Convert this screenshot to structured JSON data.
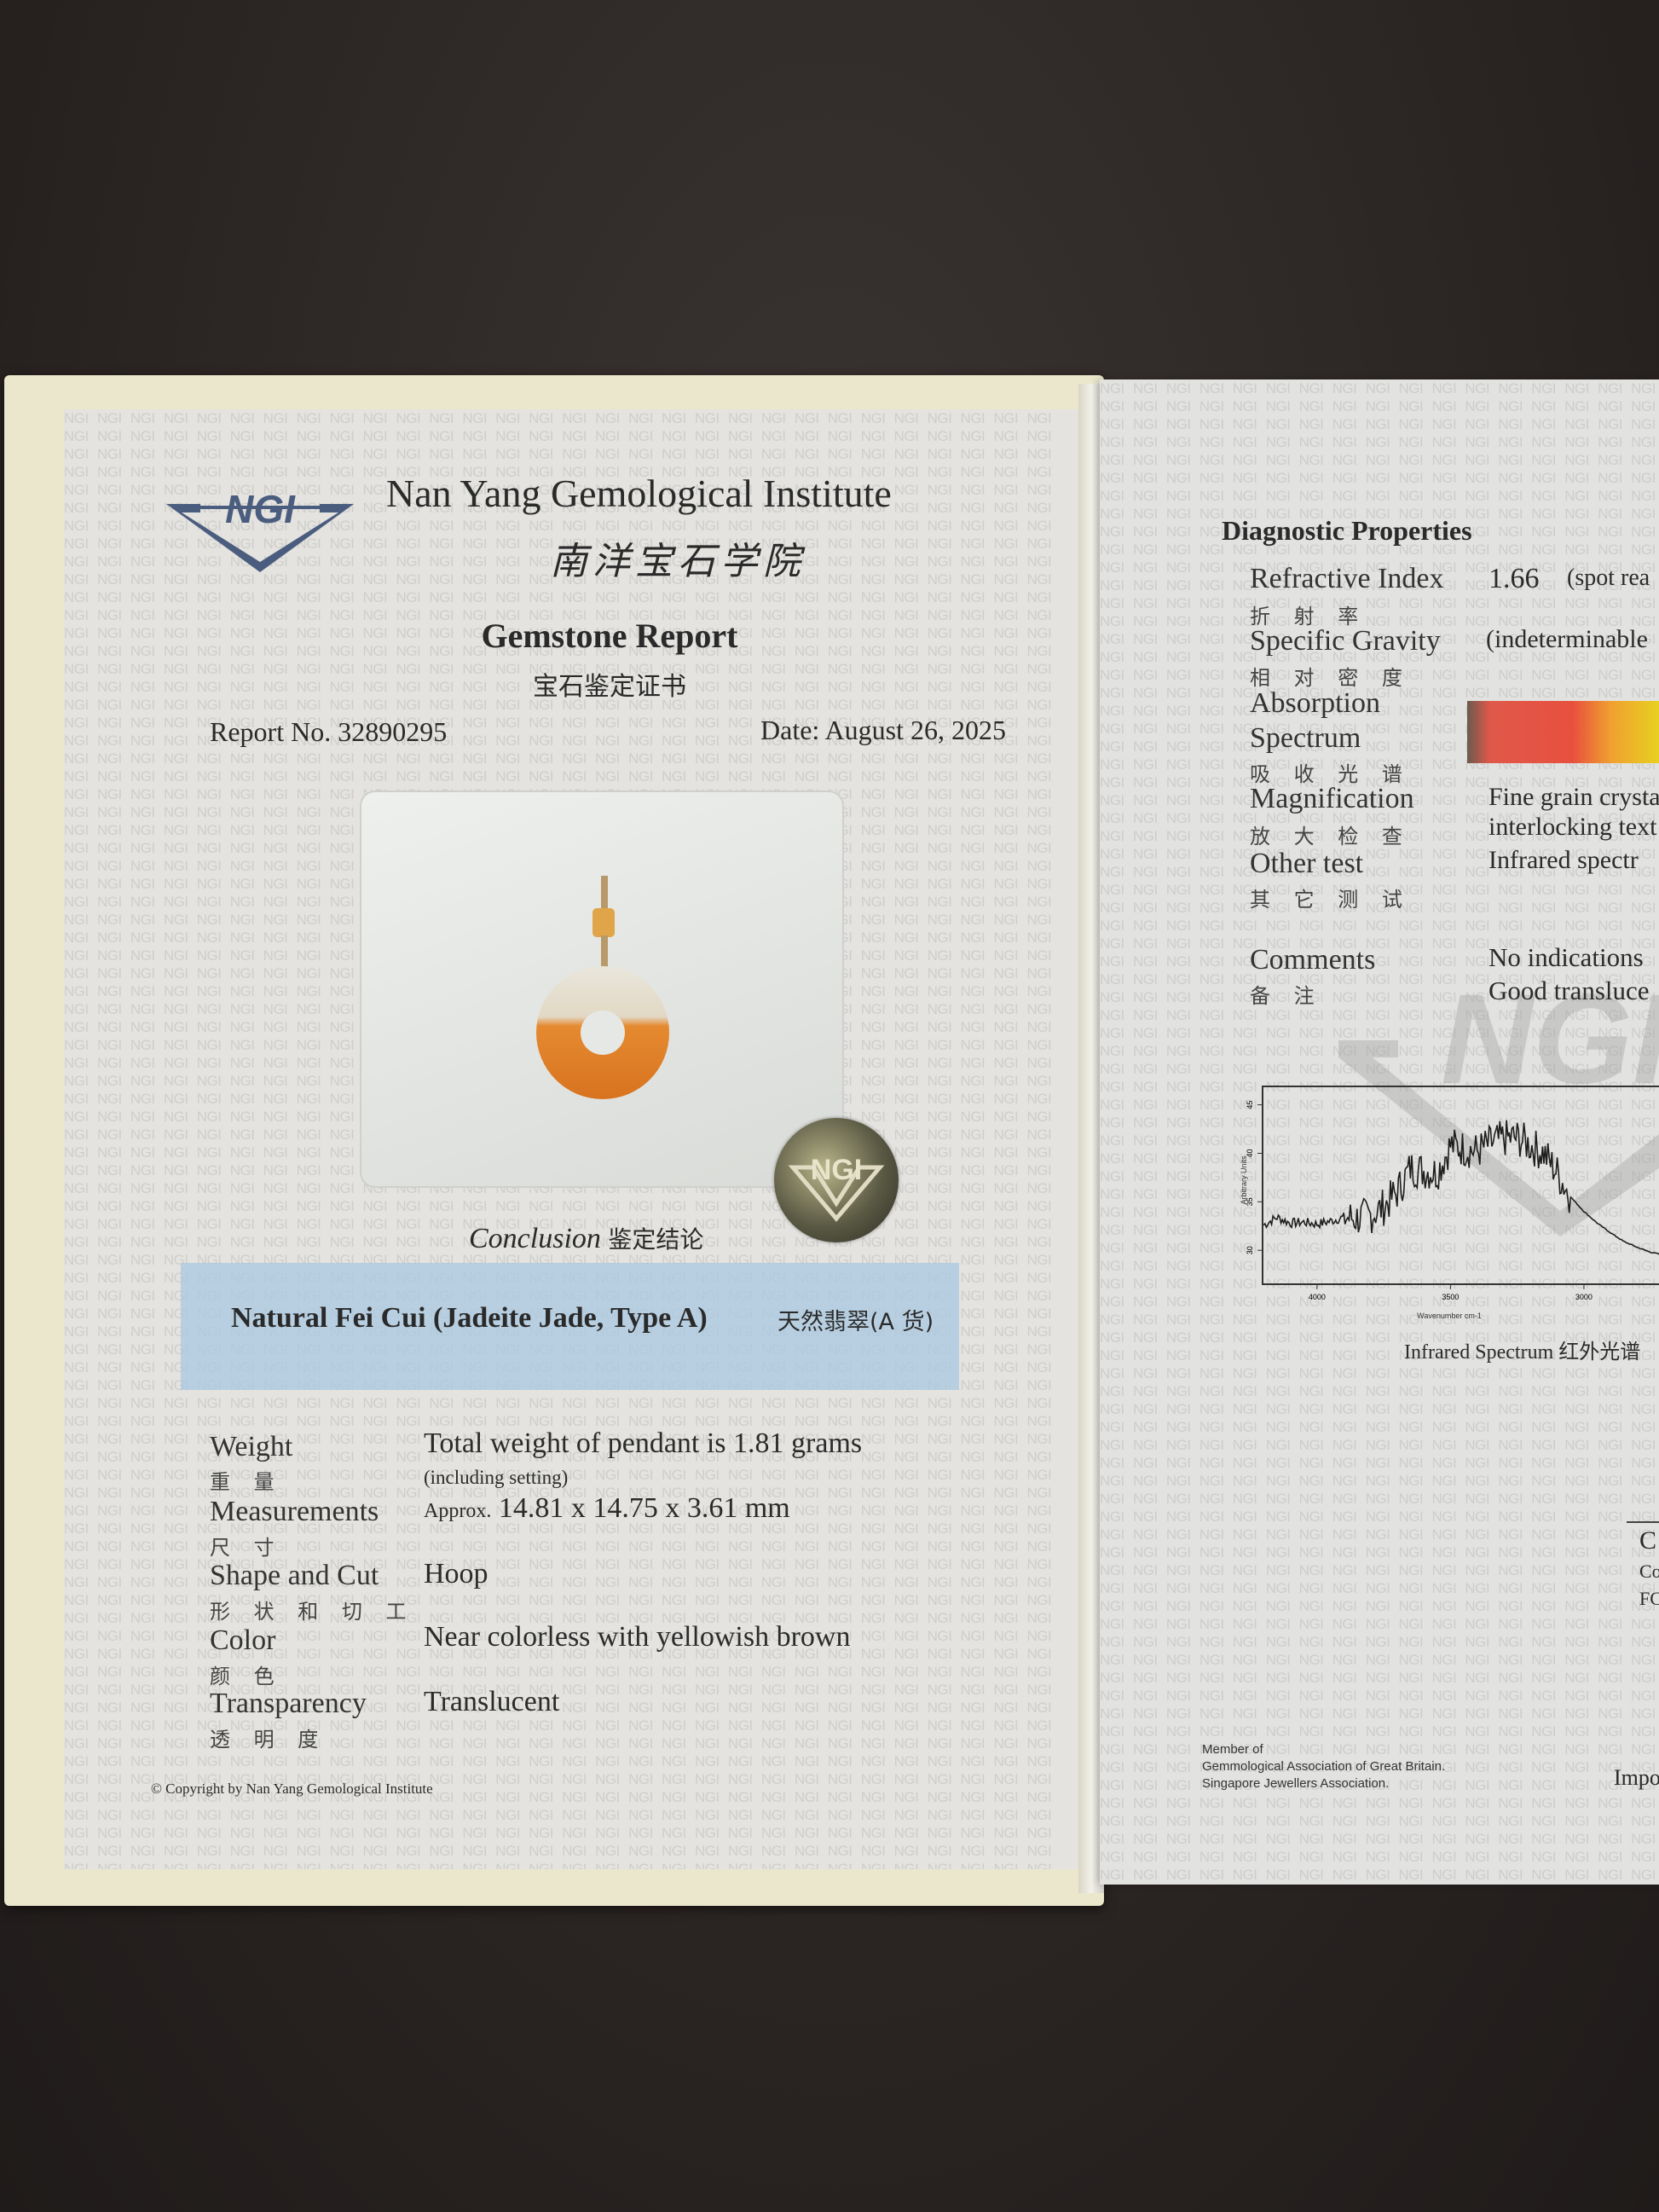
{
  "watermark": "NGI",
  "institute": {
    "name_en": "Nan Yang Gemological Institute",
    "name_cn": "南洋宝石学院",
    "logo_text": "NGI"
  },
  "report": {
    "title_en": "Gemstone Report",
    "title_cn": "宝石鉴定证书",
    "number": "Report No. 32890295",
    "date": "Date: August 26, 2025"
  },
  "conclusion": {
    "label_en": "Conclusion",
    "label_cn": "鉴定结论",
    "text_en": "Natural Fei Cui (Jadeite Jade, Type A)",
    "text_cn": "天然翡翠(A 货)"
  },
  "properties": [
    {
      "label": "Weight",
      "label_cn": "重 量",
      "value": "Total weight of pendant is 1.81 grams",
      "note": "(including setting)"
    },
    {
      "label": "Measurements",
      "label_cn": "尺 寸",
      "prefix": "Approx.",
      "value": "14.81 x 14.75 x 3.61 mm"
    },
    {
      "label": "Shape and Cut",
      "label_cn": "形 状 和 切 工",
      "value": "Hoop"
    },
    {
      "label": "Color",
      "label_cn": "颜 色",
      "value": "Near colorless with yellowish brown"
    },
    {
      "label": "Transparency",
      "label_cn": "透 明 度",
      "value": "Translucent"
    }
  ],
  "copyright": "© Copyright by Nan Yang Gemological Institute",
  "hologram": {
    "text": "NGI"
  },
  "diagnostic": {
    "title": "Diagnostic Properties",
    "rows": [
      {
        "label": "Refractive Index",
        "label_cn": "折 射 率",
        "value": "1.66",
        "value2": "(spot rea"
      },
      {
        "label": "Specific Gravity",
        "label_cn": "相 对 密 度",
        "value": "(indeterminable"
      },
      {
        "label": "Absorption",
        "label2": "Spectrum",
        "label_cn": "吸 收 光 谱"
      },
      {
        "label": "Magnification",
        "label_cn": "放 大 检 查",
        "value": "Fine grain crysta",
        "value2": "interlocking text"
      },
      {
        "label": "Other test",
        "label_cn": "其 它 测 试",
        "value": "Infrared spectr"
      },
      {
        "label": "Comments",
        "label_cn": "备 注",
        "value": "No indications",
        "value2": "Good transluce"
      }
    ],
    "spectrum_colors": [
      "#6b5a4e",
      "#e0584a",
      "#e8503e",
      "#f0a030",
      "#e8d020"
    ]
  },
  "chart_data": {
    "type": "line",
    "title": "Infrared Spectrum 红外光谱",
    "xlabel": "Wavenumber cm-1",
    "ylabel": "Arbitrary Units",
    "xlim": [
      4204,
      2543
    ],
    "ylim": [
      26.5,
      46.9
    ],
    "xticks": [
      4000,
      3500,
      3000
    ],
    "yticks": [
      30,
      35,
      40,
      45
    ],
    "grid": false,
    "series": [
      {
        "x": [
          4200,
          4150,
          4100,
          4050,
          4000,
          3950,
          3900,
          3850,
          3800,
          3750,
          3700,
          3650,
          3600,
          3550,
          3500,
          3450,
          3400,
          3350,
          3300,
          3250,
          3200,
          3150,
          3100,
          3050,
          3000,
          2950,
          2900,
          2850,
          2800,
          2750,
          2700,
          2650,
          2600,
          2550
        ],
        "y": [
          32.6,
          33.4,
          32.8,
          32.9,
          32.7,
          33.0,
          33.4,
          33.3,
          33.6,
          34.5,
          36.0,
          38.5,
          38.2,
          38.0,
          40.8,
          40.5,
          40.2,
          41.0,
          41.5,
          41.6,
          40.8,
          40.0,
          38.0,
          35.5,
          34.0,
          32.8,
          31.8,
          30.9,
          30.3,
          29.8,
          29.5,
          29.4,
          29.5,
          29.8
        ]
      }
    ]
  },
  "right_footer": {
    "member": [
      "Member of",
      "Gemmological Association of Great Britain.",
      "Singapore Jewellers Association."
    ],
    "partial_box": [
      "C",
      "Co",
      "FC"
    ],
    "partial_text": "Impo"
  }
}
